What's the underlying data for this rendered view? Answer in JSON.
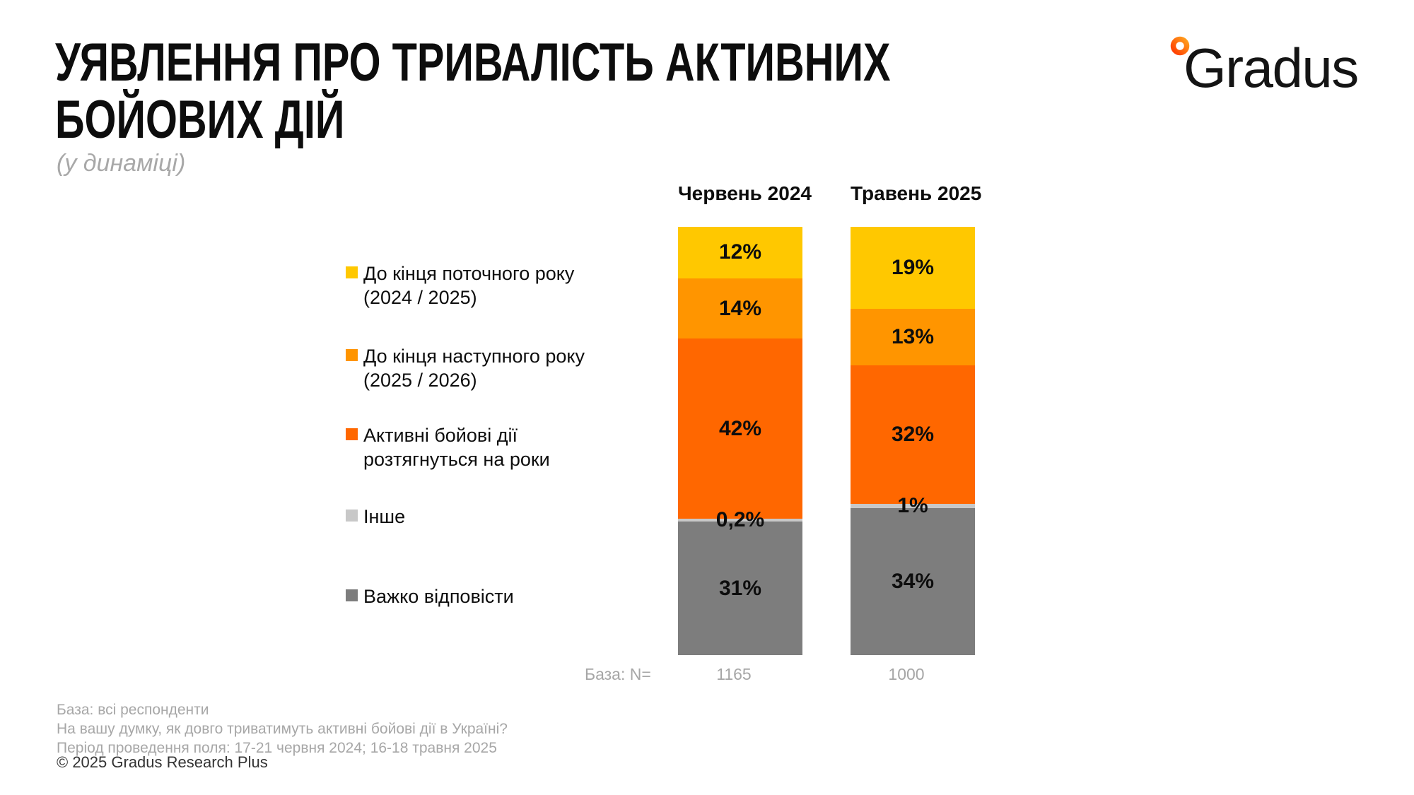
{
  "header": {
    "title_line1": "УЯВЛЕННЯ ПРО ТРИВАЛІСТЬ АКТИВНИХ",
    "title_line2": "БОЙОВИХ ДІЙ",
    "subtitle": "(у динаміці)",
    "logo_text": "Gradus",
    "logo_ring_colors": {
      "start": "#FFA01E",
      "end": "#FF3C00"
    }
  },
  "chart_data": {
    "type": "bar",
    "variant": "stacked-column",
    "unit": "%",
    "grid": false,
    "legend_position": "left",
    "categories": [
      "Червень 2024",
      "Травень 2025"
    ],
    "series": [
      {
        "name": "До кінця поточного року\n(2024 / 2025)",
        "color": "#FFC800",
        "values": [
          12,
          19
        ],
        "labels": [
          "12%",
          "19%"
        ]
      },
      {
        "name": "До кінця наступного року\n(2025 / 2026)",
        "color": "#FF9500",
        "values": [
          14,
          13
        ],
        "labels": [
          "14%",
          "13%"
        ]
      },
      {
        "name": "Активні бойові дії\nрозтягнуться на роки",
        "color": "#FF6700",
        "values": [
          42,
          32
        ],
        "labels": [
          "42%",
          "32%"
        ]
      },
      {
        "name": "Інше",
        "color": "#C8C8C8",
        "values": [
          0.2,
          1
        ],
        "labels": [
          "0,2%",
          "1%"
        ]
      },
      {
        "name": "Важко відповісти",
        "color": "#7D7D7D",
        "values": [
          31,
          34
        ],
        "labels": [
          "31%",
          "34%"
        ]
      }
    ],
    "base_label": "База: N=",
    "base_values": [
      "1165",
      "1000"
    ]
  },
  "footer": {
    "notes": [
      "База: всі респонденти",
      "На вашу думку, як довго триватимуть активні бойові дії в Україні?",
      "Період проведення поля: 17-21 червня 2024; 16-18 травня 2025"
    ],
    "copyright": "© 2025 Gradus Research Plus"
  }
}
